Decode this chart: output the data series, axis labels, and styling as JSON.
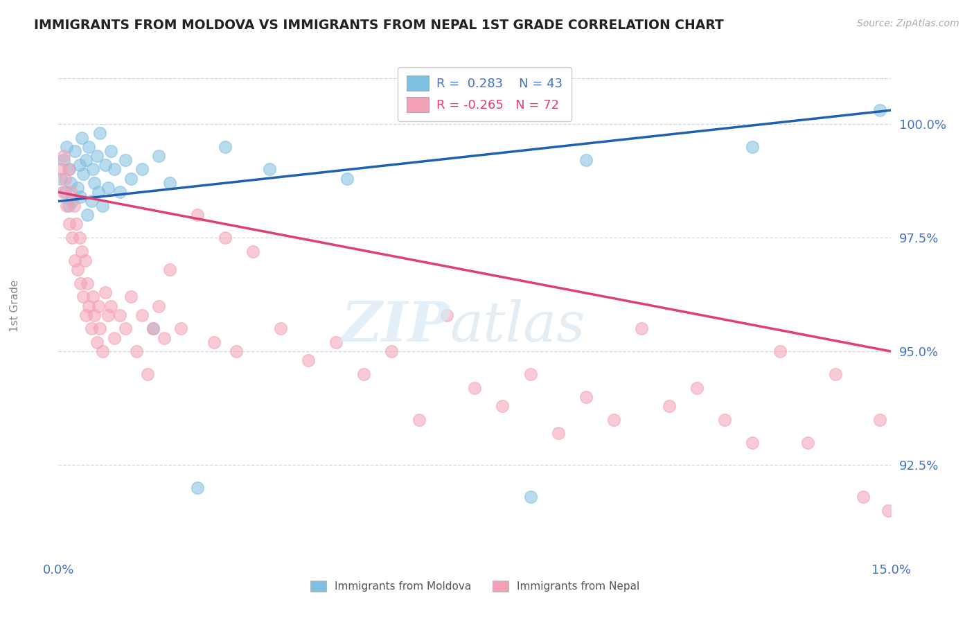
{
  "title": "IMMIGRANTS FROM MOLDOVA VS IMMIGRANTS FROM NEPAL 1ST GRADE CORRELATION CHART",
  "source": "Source: ZipAtlas.com",
  "ylabel": "1st Grade",
  "xlim": [
    0.0,
    15.0
  ],
  "ylim": [
    90.5,
    101.5
  ],
  "moldova_color": "#7fbfdf",
  "nepal_color": "#f4a0b5",
  "moldova_R": 0.283,
  "moldova_N": 43,
  "nepal_R": -0.265,
  "nepal_N": 72,
  "trend_blue_color": "#2060b0",
  "trend_pink_color": "#e04070",
  "background_color": "#ffffff",
  "ytick_vals": [
    92.5,
    95.0,
    97.5,
    100.0
  ],
  "ytick_labels": [
    "92.5%",
    "95.0%",
    "97.5%",
    "100.0%"
  ],
  "moldova_x": [
    0.05,
    0.1,
    0.12,
    0.15,
    0.18,
    0.2,
    0.22,
    0.25,
    0.3,
    0.35,
    0.38,
    0.4,
    0.42,
    0.45,
    0.5,
    0.52,
    0.55,
    0.6,
    0.62,
    0.65,
    0.7,
    0.72,
    0.75,
    0.8,
    0.85,
    0.9,
    0.95,
    1.0,
    1.1,
    1.2,
    1.3,
    1.5,
    1.7,
    1.8,
    2.0,
    2.5,
    3.0,
    3.8,
    5.2,
    8.5,
    9.5,
    12.5,
    14.8
  ],
  "moldova_y": [
    98.8,
    99.2,
    98.5,
    99.5,
    98.2,
    99.0,
    98.7,
    98.3,
    99.4,
    98.6,
    99.1,
    98.4,
    99.7,
    98.9,
    99.2,
    98.0,
    99.5,
    98.3,
    99.0,
    98.7,
    99.3,
    98.5,
    99.8,
    98.2,
    99.1,
    98.6,
    99.4,
    99.0,
    98.5,
    99.2,
    98.8,
    99.0,
    95.5,
    99.3,
    98.7,
    92.0,
    99.5,
    99.0,
    98.8,
    91.8,
    99.2,
    99.5,
    100.3
  ],
  "nepal_x": [
    0.05,
    0.08,
    0.1,
    0.12,
    0.15,
    0.18,
    0.2,
    0.22,
    0.25,
    0.28,
    0.3,
    0.32,
    0.35,
    0.38,
    0.4,
    0.42,
    0.45,
    0.48,
    0.5,
    0.52,
    0.55,
    0.6,
    0.62,
    0.65,
    0.7,
    0.72,
    0.75,
    0.8,
    0.85,
    0.9,
    0.95,
    1.0,
    1.1,
    1.2,
    1.3,
    1.4,
    1.5,
    1.6,
    1.7,
    1.8,
    1.9,
    2.0,
    2.2,
    2.5,
    2.8,
    3.0,
    3.2,
    3.5,
    4.0,
    4.5,
    5.0,
    5.5,
    6.0,
    6.5,
    7.0,
    7.5,
    8.0,
    8.5,
    9.0,
    9.5,
    10.0,
    10.5,
    11.0,
    11.5,
    12.0,
    12.5,
    13.0,
    13.5,
    14.0,
    14.5,
    14.8,
    14.95
  ],
  "nepal_y": [
    99.0,
    98.5,
    99.3,
    98.8,
    98.2,
    99.0,
    97.8,
    98.5,
    97.5,
    98.2,
    97.0,
    97.8,
    96.8,
    97.5,
    96.5,
    97.2,
    96.2,
    97.0,
    95.8,
    96.5,
    96.0,
    95.5,
    96.2,
    95.8,
    95.2,
    96.0,
    95.5,
    95.0,
    96.3,
    95.8,
    96.0,
    95.3,
    95.8,
    95.5,
    96.2,
    95.0,
    95.8,
    94.5,
    95.5,
    96.0,
    95.3,
    96.8,
    95.5,
    98.0,
    95.2,
    97.5,
    95.0,
    97.2,
    95.5,
    94.8,
    95.2,
    94.5,
    95.0,
    93.5,
    95.8,
    94.2,
    93.8,
    94.5,
    93.2,
    94.0,
    93.5,
    95.5,
    93.8,
    94.2,
    93.5,
    93.0,
    95.0,
    93.0,
    94.5,
    91.8,
    93.5,
    91.5
  ]
}
